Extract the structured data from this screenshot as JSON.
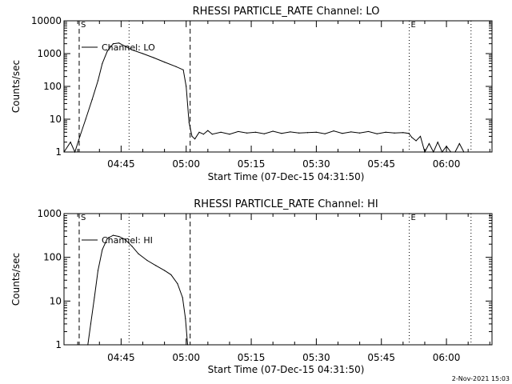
{
  "footer_timestamp": "2-Nov-2021 15:03",
  "chart_data": [
    {
      "type": "line",
      "title": "RHESSI PARTICLE_RATE Channel: LO",
      "xlabel": "Start Time (07-Dec-15 04:31:50)",
      "ylabel": "Counts/sec",
      "yscale": "log",
      "ylim": [
        1,
        10000
      ],
      "yticks": [
        1,
        10,
        100,
        1000,
        10000
      ],
      "ytick_labels": [
        "1",
        "10",
        "100",
        "1000",
        "10000"
      ],
      "xlim": [
        "04:31:50",
        "06:10:30"
      ],
      "xticks": [
        "04:45",
        "05:00",
        "05:15",
        "05:30",
        "05:45",
        "06:00"
      ],
      "legend": {
        "label": "Channel: LO",
        "position": "top-left"
      },
      "vlines": [
        {
          "time": "04:35:20",
          "style": "dashed",
          "label": "S"
        },
        {
          "time": "04:46:50",
          "style": "dotted"
        },
        {
          "time": "05:00:55",
          "style": "dashed"
        },
        {
          "time": "05:51:25",
          "style": "dotted",
          "label": "E"
        },
        {
          "time": "06:05:40",
          "style": "dotted"
        }
      ],
      "x": [
        "04:31:50",
        "04:33:20",
        "04:34:20",
        "04:35:30",
        "04:36:50",
        "04:38:20",
        "04:39:40",
        "04:40:40",
        "04:41:50",
        "04:43:10",
        "04:44:30",
        "04:45:50",
        "04:47:30",
        "04:50:00",
        "04:52:30",
        "04:55:00",
        "04:57:40",
        "04:59:20",
        "05:00:00",
        "05:00:40",
        "05:01:20",
        "05:02:00",
        "05:03:00",
        "05:04:00",
        "05:05:00",
        "05:06:00",
        "05:08:00",
        "05:10:00",
        "05:12:00",
        "05:14:00",
        "05:16:00",
        "05:18:00",
        "05:20:00",
        "05:22:00",
        "05:24:00",
        "05:26:00",
        "05:28:00",
        "05:30:00",
        "05:32:00",
        "05:34:00",
        "05:36:00",
        "05:38:00",
        "05:40:00",
        "05:42:00",
        "05:44:00",
        "05:46:00",
        "05:48:00",
        "05:50:00",
        "05:51:20",
        "05:52:00",
        "05:53:00",
        "05:54:00",
        "05:55:00",
        "05:56:00",
        "05:57:00",
        "05:58:00",
        "05:59:00",
        "06:00:00",
        "06:01:00",
        "06:02:00",
        "06:03:00",
        "06:04:00"
      ],
      "values": [
        1,
        2,
        1,
        3,
        10,
        40,
        150,
        500,
        1200,
        2000,
        2100,
        1700,
        1300,
        1000,
        750,
        550,
        400,
        320,
        100,
        8,
        3,
        2.5,
        4,
        3.5,
        4.5,
        3.5,
        4,
        3.5,
        4.2,
        3.8,
        4,
        3.6,
        4.3,
        3.7,
        4.1,
        3.8,
        3.9,
        4,
        3.6,
        4.4,
        3.7,
        4.1,
        3.8,
        4.2,
        3.6,
        4,
        3.8,
        3.9,
        3.7,
        2.8,
        2.2,
        3,
        1,
        1.8,
        1,
        2,
        1,
        1.5,
        1,
        1,
        1.8,
        1
      ]
    },
    {
      "type": "line",
      "title": "RHESSI PARTICLE_RATE Channel: HI",
      "xlabel": "Start Time (07-Dec-15 04:31:50)",
      "ylabel": "Counts/sec",
      "yscale": "log",
      "ylim": [
        1,
        1000
      ],
      "yticks": [
        1,
        10,
        100,
        1000
      ],
      "ytick_labels": [
        "1",
        "10",
        "100",
        "1000"
      ],
      "xlim": [
        "04:31:50",
        "06:10:30"
      ],
      "xticks": [
        "04:45",
        "05:00",
        "05:15",
        "05:30",
        "05:45",
        "06:00"
      ],
      "legend": {
        "label": "Channel: HI",
        "position": "top-left"
      },
      "vlines": [
        {
          "time": "04:35:20",
          "style": "dashed",
          "label": "S"
        },
        {
          "time": "04:46:50",
          "style": "dotted"
        },
        {
          "time": "05:00:55",
          "style": "dashed"
        },
        {
          "time": "05:51:25",
          "style": "dotted",
          "label": "E"
        },
        {
          "time": "06:05:40",
          "style": "dotted"
        }
      ],
      "x": [
        "04:37:20",
        "04:38:00",
        "04:38:50",
        "04:39:40",
        "04:40:40",
        "04:41:50",
        "04:43:10",
        "04:44:30",
        "04:45:50",
        "04:47:30",
        "04:49:00",
        "04:51:00",
        "04:53:00",
        "04:55:00",
        "04:56:30",
        "04:58:00",
        "04:59:10",
        "04:59:50",
        "05:00:20"
      ],
      "values": [
        1,
        3,
        12,
        50,
        150,
        270,
        320,
        300,
        260,
        180,
        120,
        85,
        65,
        50,
        40,
        25,
        12,
        4,
        1
      ]
    }
  ]
}
